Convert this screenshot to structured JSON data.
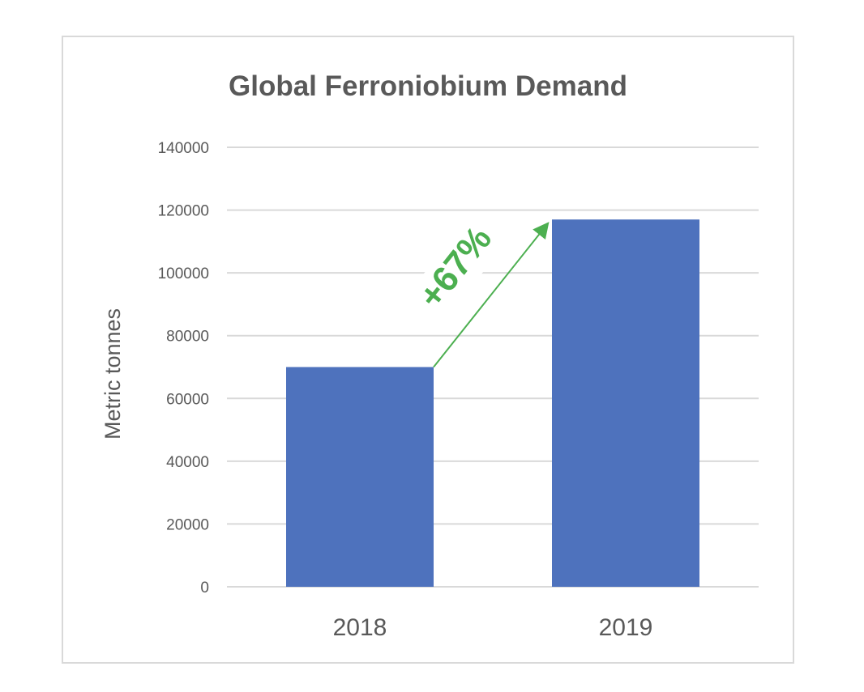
{
  "chart_data": {
    "type": "bar",
    "title": "Global Ferroniobium Demand",
    "xlabel": "",
    "ylabel": "Metric tonnes",
    "categories": [
      "2018",
      "2019"
    ],
    "values": [
      70000,
      117000
    ],
    "ylim": [
      0,
      140000
    ],
    "yticks": [
      0,
      20000,
      40000,
      60000,
      80000,
      100000,
      120000,
      140000
    ],
    "grid": true,
    "legend": "none",
    "annotation": {
      "text": "+67%",
      "from_category": "2018",
      "to_category": "2019"
    },
    "colors": {
      "bar": "#4e72bd",
      "annotation": "#4caf50",
      "grid": "#d9d9d9",
      "text": "#595959"
    }
  }
}
